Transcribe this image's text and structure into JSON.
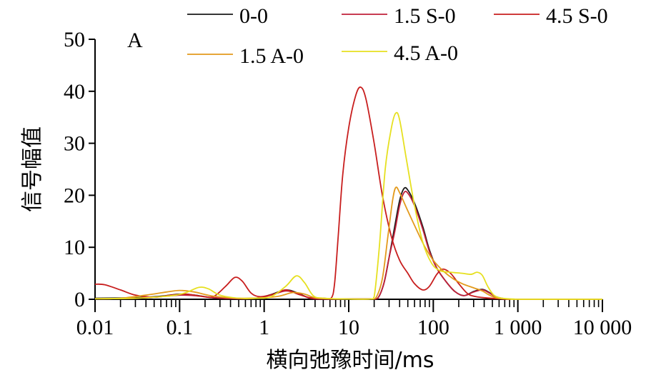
{
  "chart_data": {
    "type": "line",
    "panel_label": "A",
    "xlabel": "横向弛豫时间/ms",
    "ylabel": "信号幅值",
    "x_scale": "log",
    "xlim": [
      0.01,
      10000
    ],
    "ylim": [
      0,
      50
    ],
    "x_ticks": [
      {
        "value": 0.01,
        "label": "0.01"
      },
      {
        "value": 0.1,
        "label": "0.1"
      },
      {
        "value": 1,
        "label": "1"
      },
      {
        "value": 10,
        "label": "10"
      },
      {
        "value": 100,
        "label": "100"
      },
      {
        "value": 1000,
        "label": "1 000"
      },
      {
        "value": 10000,
        "label": "10 000"
      }
    ],
    "y_ticks": [
      {
        "value": 0,
        "label": "0"
      },
      {
        "value": 10,
        "label": "10"
      },
      {
        "value": 20,
        "label": "20"
      },
      {
        "value": 30,
        "label": "30"
      },
      {
        "value": 40,
        "label": "40"
      },
      {
        "value": 50,
        "label": "50"
      }
    ],
    "legend": [
      {
        "label": "0-0",
        "color": "#1a1a1a",
        "series": 0
      },
      {
        "label": "1.5 S-0",
        "color": "#c0203a",
        "series": 1
      },
      {
        "label": "4.5 S-0",
        "color": "#c81e1e",
        "series": 2
      },
      {
        "label": "1.5 A-0",
        "color": "#e39a1c",
        "series": 3
      },
      {
        "label": "4.5 A-0",
        "color": "#e6e020",
        "series": 4
      }
    ],
    "series": [
      {
        "name": "0-0",
        "color": "#1a1a1a",
        "points": [
          [
            0.01,
            0.2
          ],
          [
            0.03,
            0.3
          ],
          [
            0.06,
            0.6
          ],
          [
            0.1,
            1.0
          ],
          [
            0.15,
            0.8
          ],
          [
            0.25,
            0.3
          ],
          [
            0.5,
            0.1
          ],
          [
            0.8,
            0.2
          ],
          [
            1.2,
            0.9
          ],
          [
            1.8,
            1.8
          ],
          [
            2.5,
            1.2
          ],
          [
            3.5,
            0.2
          ],
          [
            5,
            0.05
          ],
          [
            10,
            0.05
          ],
          [
            18,
            0.05
          ],
          [
            22,
            0.2
          ],
          [
            26,
            3
          ],
          [
            30,
            8
          ],
          [
            35,
            14
          ],
          [
            40,
            19
          ],
          [
            45,
            21.3
          ],
          [
            50,
            21
          ],
          [
            60,
            18.5
          ],
          [
            75,
            14
          ],
          [
            90,
            9.5
          ],
          [
            110,
            6
          ],
          [
            140,
            3.5
          ],
          [
            180,
            1.5
          ],
          [
            230,
            0.7
          ],
          [
            300,
            1.5
          ],
          [
            380,
            1.9
          ],
          [
            450,
            1.4
          ],
          [
            550,
            0.5
          ],
          [
            700,
            0.1
          ],
          [
            1000,
            0
          ],
          [
            10000,
            0
          ]
        ]
      },
      {
        "name": "1.5 S-0",
        "color": "#c0203a",
        "points": [
          [
            0.01,
            0.1
          ],
          [
            0.03,
            0.2
          ],
          [
            0.06,
            0.5
          ],
          [
            0.1,
            0.8
          ],
          [
            0.15,
            0.7
          ],
          [
            0.25,
            0.3
          ],
          [
            0.5,
            0.1
          ],
          [
            0.8,
            0.2
          ],
          [
            1.2,
            0.8
          ],
          [
            1.8,
            1.6
          ],
          [
            2.5,
            1.1
          ],
          [
            3.5,
            0.2
          ],
          [
            5,
            0.05
          ],
          [
            10,
            0.05
          ],
          [
            18,
            0.05
          ],
          [
            22,
            0.2
          ],
          [
            26,
            3
          ],
          [
            30,
            8
          ],
          [
            35,
            13
          ],
          [
            40,
            18
          ],
          [
            45,
            20.5
          ],
          [
            50,
            20.4
          ],
          [
            60,
            18
          ],
          [
            75,
            13.5
          ],
          [
            90,
            9.2
          ],
          [
            110,
            6
          ],
          [
            140,
            3.5
          ],
          [
            180,
            1.5
          ],
          [
            230,
            0.7
          ],
          [
            300,
            1.4
          ],
          [
            380,
            1.8
          ],
          [
            450,
            1.3
          ],
          [
            550,
            0.5
          ],
          [
            700,
            0.1
          ],
          [
            1000,
            0
          ],
          [
            10000,
            0
          ]
        ]
      },
      {
        "name": "4.5 S-0",
        "color": "#c81e1e",
        "points": [
          [
            0.01,
            2.9
          ],
          [
            0.013,
            2.8
          ],
          [
            0.02,
            1.8
          ],
          [
            0.03,
            0.8
          ],
          [
            0.05,
            0.4
          ],
          [
            0.08,
            0.8
          ],
          [
            0.12,
            1.0
          ],
          [
            0.18,
            0.6
          ],
          [
            0.25,
            0.5
          ],
          [
            0.35,
            2.5
          ],
          [
            0.45,
            4.2
          ],
          [
            0.55,
            3.5
          ],
          [
            0.7,
            1.2
          ],
          [
            0.9,
            0.5
          ],
          [
            1.3,
            1.0
          ],
          [
            1.8,
            1.8
          ],
          [
            2.5,
            1.0
          ],
          [
            3.5,
            0.3
          ],
          [
            5,
            0.2
          ],
          [
            6.2,
            0.2
          ],
          [
            6.8,
            3
          ],
          [
            7.5,
            12
          ],
          [
            8.5,
            24
          ],
          [
            10,
            33
          ],
          [
            12,
            39
          ],
          [
            13.8,
            40.8
          ],
          [
            16,
            38.5
          ],
          [
            20,
            30
          ],
          [
            25,
            20
          ],
          [
            32,
            12
          ],
          [
            40,
            7.5
          ],
          [
            50,
            5
          ],
          [
            60,
            3
          ],
          [
            75,
            1.8
          ],
          [
            90,
            2.5
          ],
          [
            110,
            4.8
          ],
          [
            130,
            5.8
          ],
          [
            160,
            5
          ],
          [
            200,
            3
          ],
          [
            250,
            1.2
          ],
          [
            300,
            0.6
          ],
          [
            400,
            0.3
          ],
          [
            600,
            0.1
          ],
          [
            1000,
            0
          ],
          [
            10000,
            0
          ]
        ]
      },
      {
        "name": "1.5 A-0",
        "color": "#e39a1c",
        "points": [
          [
            0.01,
            0.1
          ],
          [
            0.02,
            0.2
          ],
          [
            0.04,
            0.8
          ],
          [
            0.07,
            1.4
          ],
          [
            0.1,
            1.7
          ],
          [
            0.15,
            1.4
          ],
          [
            0.25,
            0.6
          ],
          [
            0.5,
            0.2
          ],
          [
            1,
            0.3
          ],
          [
            1.5,
            0.6
          ],
          [
            2.2,
            1.3
          ],
          [
            3,
            1.0
          ],
          [
            4,
            0.3
          ],
          [
            6,
            0.1
          ],
          [
            10,
            0.05
          ],
          [
            18,
            0.05
          ],
          [
            21,
            0.3
          ],
          [
            25,
            4
          ],
          [
            29,
            12
          ],
          [
            33,
            19
          ],
          [
            36,
            21.5
          ],
          [
            40,
            20.5
          ],
          [
            50,
            17
          ],
          [
            65,
            13
          ],
          [
            80,
            10
          ],
          [
            100,
            7.5
          ],
          [
            130,
            5.5
          ],
          [
            170,
            4
          ],
          [
            220,
            3
          ],
          [
            300,
            2.2
          ],
          [
            380,
            1.6
          ],
          [
            450,
            0.9
          ],
          [
            550,
            0.3
          ],
          [
            700,
            0.1
          ],
          [
            1000,
            0
          ],
          [
            10000,
            0
          ]
        ]
      },
      {
        "name": "4.5 A-0",
        "color": "#e6e020",
        "points": [
          [
            0.01,
            0.1
          ],
          [
            0.03,
            0.2
          ],
          [
            0.06,
            0.5
          ],
          [
            0.09,
            0.8
          ],
          [
            0.12,
            1.3
          ],
          [
            0.17,
            2.3
          ],
          [
            0.22,
            2.0
          ],
          [
            0.3,
            0.8
          ],
          [
            0.5,
            0.2
          ],
          [
            0.8,
            0.2
          ],
          [
            1.2,
            0.5
          ],
          [
            1.8,
            2.5
          ],
          [
            2.4,
            4.5
          ],
          [
            3,
            3.2
          ],
          [
            3.8,
            0.7
          ],
          [
            5,
            0.2
          ],
          [
            10,
            0.05
          ],
          [
            18,
            0.05
          ],
          [
            20,
            0.5
          ],
          [
            23,
            10
          ],
          [
            27,
            25
          ],
          [
            32,
            33
          ],
          [
            36,
            35.8
          ],
          [
            40,
            34.5
          ],
          [
            48,
            27
          ],
          [
            60,
            18
          ],
          [
            75,
            11
          ],
          [
            95,
            7
          ],
          [
            120,
            5.5
          ],
          [
            160,
            5.2
          ],
          [
            220,
            5
          ],
          [
            280,
            4.8
          ],
          [
            330,
            5.2
          ],
          [
            380,
            4.6
          ],
          [
            440,
            2.5
          ],
          [
            520,
            0.8
          ],
          [
            650,
            0.2
          ],
          [
            900,
            0.05
          ],
          [
            1000,
            0
          ],
          [
            10000,
            0
          ]
        ]
      }
    ]
  }
}
